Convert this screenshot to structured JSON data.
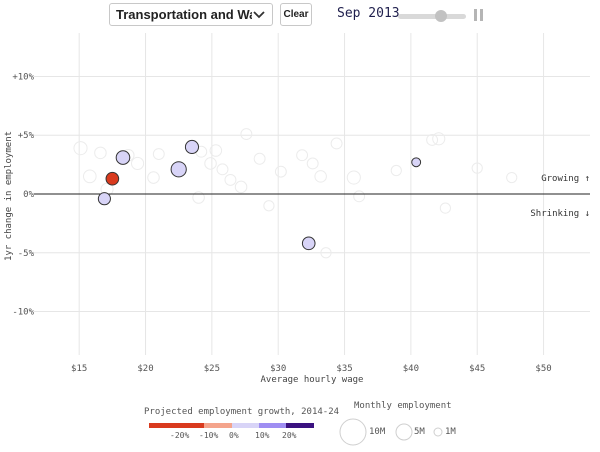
{
  "controls": {
    "industry_select": "Transportation and Warehousing",
    "clear_label": "Clear",
    "month_label": "Sep 2013",
    "slider_value": 0.62
  },
  "colors": {
    "neg_strong": "#d93a1e",
    "neg_mid": "#f4a48c",
    "pos_light": "#d8d4f7",
    "pos_mid": "#9f8ef2",
    "pos_strong": "#3b1280"
  },
  "chart_data": {
    "type": "scatter",
    "xlabel": "Average hourly wage",
    "ylabel": "1yr change in employment",
    "x_ticks": [
      "$15",
      "$20",
      "$25",
      "$30",
      "$35",
      "$40",
      "$45",
      "$50"
    ],
    "x_tick_values": [
      15,
      20,
      25,
      30,
      35,
      40,
      45,
      50
    ],
    "y_ticks": [
      "+10%",
      "+5%",
      "0%",
      "-5%",
      "-10%"
    ],
    "y_tick_values": [
      10,
      5,
      0,
      -5,
      -10
    ],
    "xlim": [
      12.8,
      53.5
    ],
    "ylim": [
      -13.7,
      13.7
    ],
    "grid": true,
    "annotations": {
      "growing": "Growing ↑",
      "shrinking": "Shrinking ↓"
    },
    "points": [
      {
        "wage": 17.5,
        "change": 1.3,
        "employment": 0.7,
        "growth": -12
      },
      {
        "wage": 18.3,
        "change": 3.1,
        "employment": 0.9,
        "growth": 6
      },
      {
        "wage": 23.5,
        "change": 4.0,
        "employment": 0.8,
        "growth": 6
      },
      {
        "wage": 22.5,
        "change": 2.1,
        "employment": 1.3,
        "growth": 6
      },
      {
        "wage": 16.9,
        "change": -0.4,
        "employment": 0.6,
        "growth": 6
      },
      {
        "wage": 32.3,
        "change": -4.2,
        "employment": 0.7,
        "growth": 6
      },
      {
        "wage": 40.4,
        "change": 2.7,
        "employment": 0.15,
        "growth": 6
      }
    ],
    "background_points": [
      {
        "wage": 15.1,
        "change": 3.9,
        "employment": 0.8
      },
      {
        "wage": 16.6,
        "change": 3.5,
        "employment": 0.5
      },
      {
        "wage": 15.8,
        "change": 1.5,
        "employment": 0.7
      },
      {
        "wage": 17.1,
        "change": 0.4,
        "employment": 0.6
      },
      {
        "wage": 18.7,
        "change": 3.3,
        "employment": 0.5
      },
      {
        "wage": 19.4,
        "change": 2.6,
        "employment": 0.6
      },
      {
        "wage": 21.0,
        "change": 3.4,
        "employment": 0.4
      },
      {
        "wage": 20.6,
        "change": 1.4,
        "employment": 0.5
      },
      {
        "wage": 24.2,
        "change": 3.6,
        "employment": 0.4
      },
      {
        "wage": 25.3,
        "change": 3.7,
        "employment": 0.5
      },
      {
        "wage": 24.9,
        "change": 2.6,
        "employment": 0.5
      },
      {
        "wage": 25.8,
        "change": 2.1,
        "employment": 0.4
      },
      {
        "wage": 26.4,
        "change": 1.2,
        "employment": 0.4
      },
      {
        "wage": 27.2,
        "change": 0.6,
        "employment": 0.5
      },
      {
        "wage": 27.6,
        "change": 5.1,
        "employment": 0.4
      },
      {
        "wage": 24.0,
        "change": -0.3,
        "employment": 0.5
      },
      {
        "wage": 28.6,
        "change": 3.0,
        "employment": 0.4
      },
      {
        "wage": 30.2,
        "change": 1.9,
        "employment": 0.4
      },
      {
        "wage": 31.8,
        "change": 3.3,
        "employment": 0.4
      },
      {
        "wage": 32.6,
        "change": 2.6,
        "employment": 0.4
      },
      {
        "wage": 33.2,
        "change": 1.5,
        "employment": 0.5
      },
      {
        "wage": 34.4,
        "change": 4.3,
        "employment": 0.4
      },
      {
        "wage": 35.7,
        "change": 1.4,
        "employment": 0.8
      },
      {
        "wage": 36.1,
        "change": -0.2,
        "employment": 0.4
      },
      {
        "wage": 38.9,
        "change": 2.0,
        "employment": 0.3
      },
      {
        "wage": 41.6,
        "change": 4.6,
        "employment": 0.4
      },
      {
        "wage": 42.1,
        "change": 4.7,
        "employment": 0.6
      },
      {
        "wage": 42.6,
        "change": -1.2,
        "employment": 0.3
      },
      {
        "wage": 33.6,
        "change": -5.0,
        "employment": 0.3
      },
      {
        "wage": 45.0,
        "change": 2.2,
        "employment": 0.3
      },
      {
        "wage": 47.6,
        "change": 1.4,
        "employment": 0.3
      },
      {
        "wage": 29.3,
        "change": -1.0,
        "employment": 0.3
      }
    ],
    "color_legend": {
      "title": "Projected employment growth, 2014-24",
      "tick_labels": [
        "-20%",
        "-10%",
        "0%",
        "10%",
        "20%"
      ]
    },
    "size_legend": {
      "title": "Monthly employment",
      "labels": [
        "10M",
        "5M",
        "1M"
      ],
      "values": [
        10,
        5,
        1
      ]
    }
  }
}
